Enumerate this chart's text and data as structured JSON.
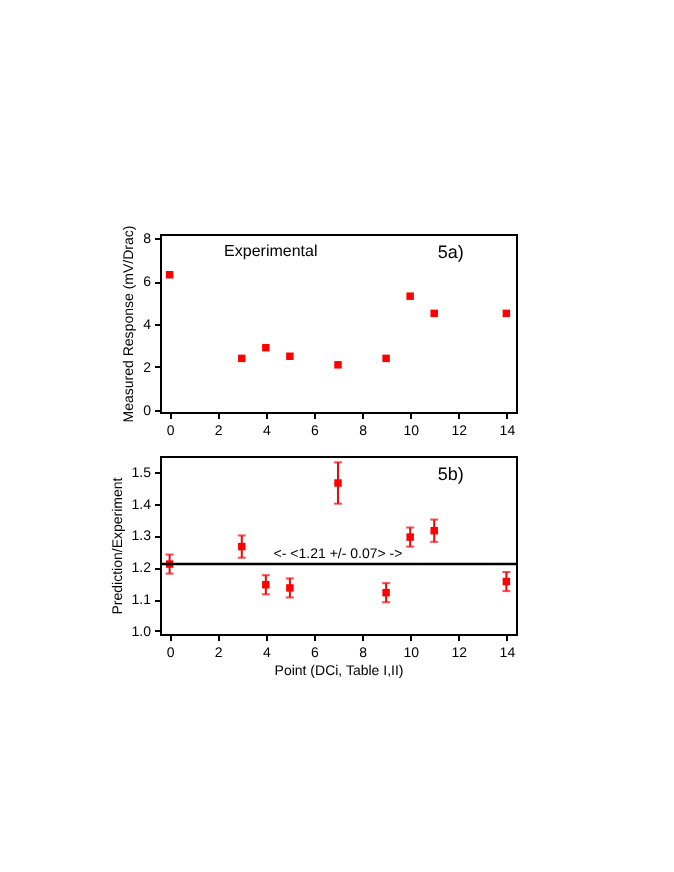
{
  "chart_data": [
    {
      "type": "scatter",
      "ylabel": "Measured Response (mV/Drac)",
      "annotations": [
        "Experimental",
        "5a)"
      ],
      "x": [
        0,
        3,
        4,
        5,
        7,
        9,
        10,
        11,
        14
      ],
      "series": [
        {
          "color": "#ff0000",
          "values": [
            6.3,
            2.4,
            2.9,
            2.5,
            2.1,
            2.4,
            5.3,
            4.5,
            4.5
          ]
        }
      ],
      "xlim": [
        -0.4,
        14.4
      ],
      "xticks": [
        0,
        2,
        4,
        6,
        8,
        10,
        12,
        14
      ],
      "ylim": [
        -0.1,
        8.2
      ],
      "yticks": [
        0,
        2,
        4,
        6,
        8
      ],
      "marker": "square",
      "grid": false,
      "legend": false
    },
    {
      "type": "scatter",
      "xlabel": "Point (DCi, Table I,II)",
      "ylabel": "Prediction/Experiment",
      "annotations": [
        "5b)"
      ],
      "x": [
        0,
        3,
        4,
        5,
        7,
        9,
        10,
        11,
        14
      ],
      "series": [
        {
          "color": "#ff0000",
          "values": [
            1.21,
            1.265,
            1.145,
            1.135,
            1.465,
            1.12,
            1.295,
            1.315,
            1.155
          ],
          "errors": [
            0.03,
            0.035,
            0.03,
            0.03,
            0.065,
            0.03,
            0.03,
            0.035,
            0.03
          ]
        }
      ],
      "ref_lines": [
        {
          "axis": "y",
          "value": 1.21,
          "label": "<- <1.21 +/- 0.07> ->",
          "color": "#000000"
        }
      ],
      "xlim": [
        -0.4,
        14.4
      ],
      "xticks": [
        0,
        2,
        4,
        6,
        8,
        10,
        12,
        14
      ],
      "ylim": [
        0.99,
        1.55
      ],
      "yticks": [
        {
          "value": 1,
          "label": "1.0"
        },
        1.1,
        1.2,
        1.3,
        1.4,
        1.5
      ],
      "marker": "square",
      "grid": false,
      "legend": false
    }
  ]
}
